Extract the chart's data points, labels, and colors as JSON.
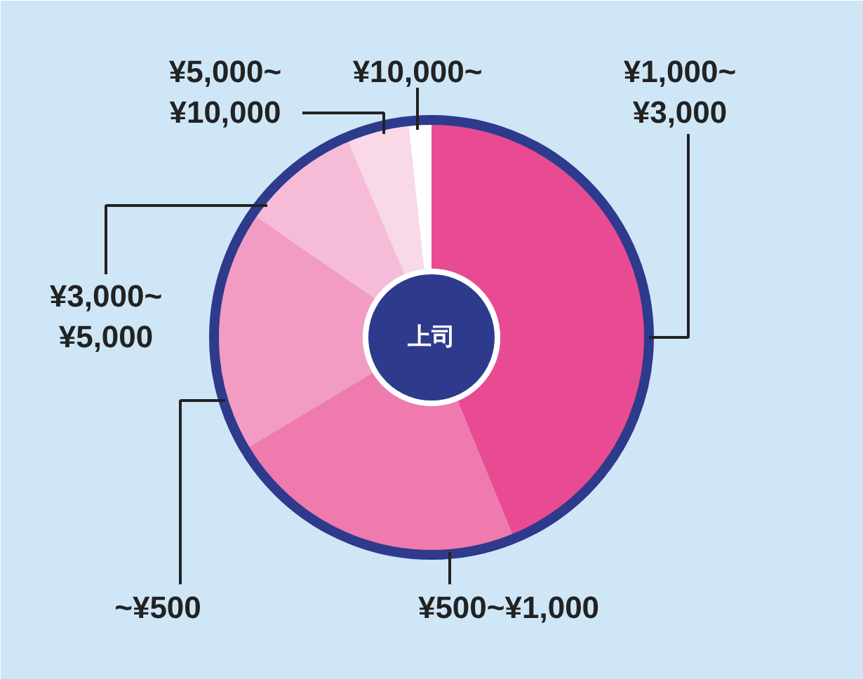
{
  "chart_data": {
    "type": "donut",
    "title": "上司",
    "categories": [
      "¥1,000~\n¥3,000",
      "¥500~¥1,000",
      "~¥500",
      "¥3,000~\n¥5,000",
      "¥5,000~\n¥10,000",
      "¥10,000~"
    ],
    "values": [
      43.8,
      22.6,
      18.2,
      9.0,
      4.7,
      1.7
    ],
    "colors": [
      "#e94b93",
      "#ee7aae",
      "#f29cc3",
      "#f6bcd7",
      "#f9d9e8",
      "#ffffff"
    ]
  }
}
